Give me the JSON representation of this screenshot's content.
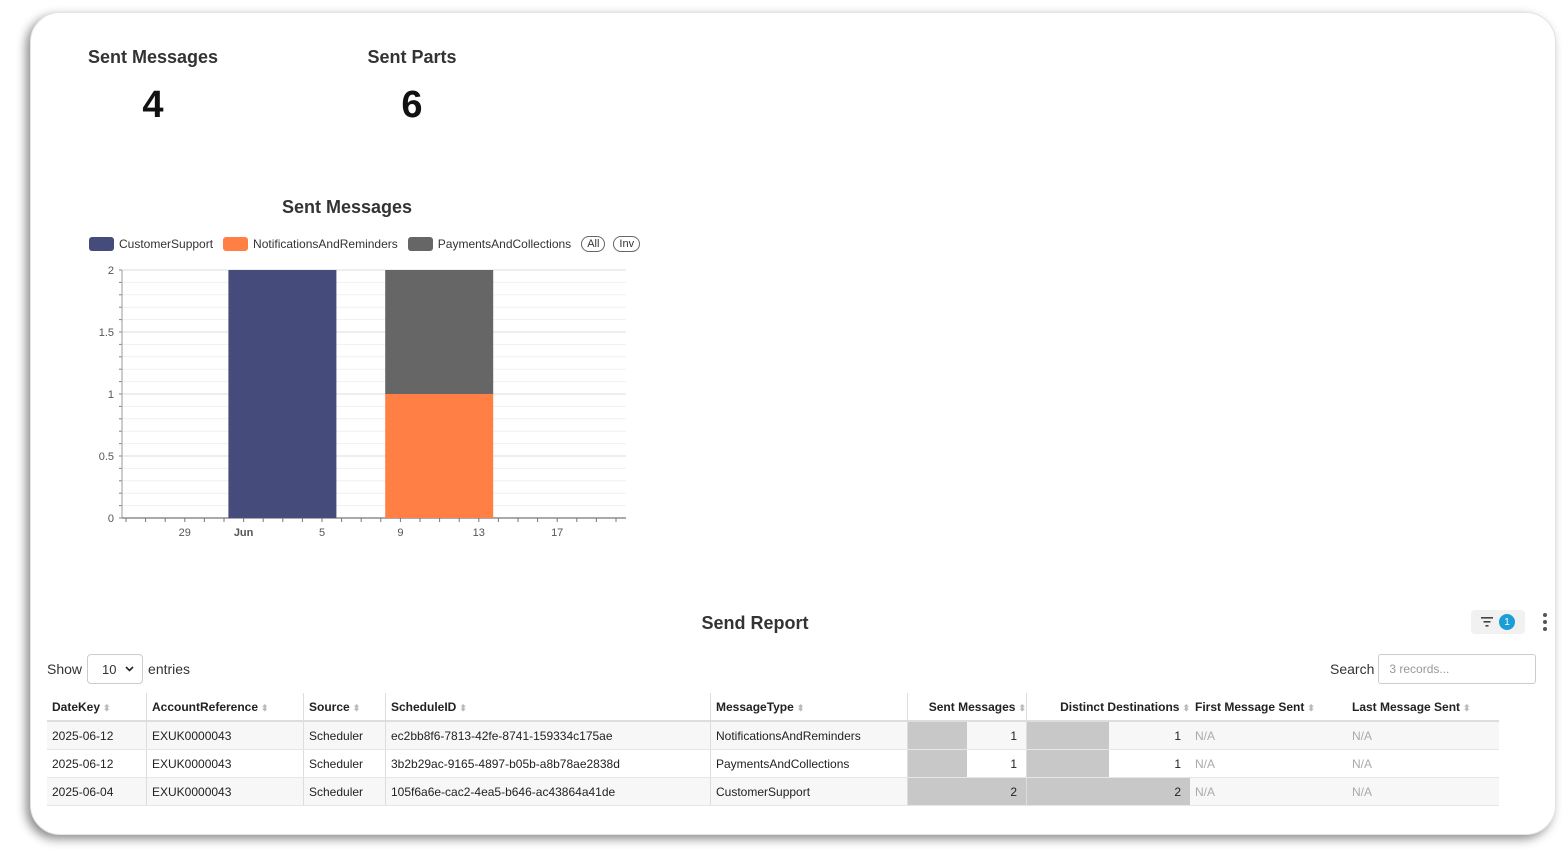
{
  "kpis": [
    {
      "title": "Sent Messages",
      "value": "4"
    },
    {
      "title": "Sent Parts",
      "value": "6"
    }
  ],
  "chart": {
    "title": "Sent Messages",
    "legend": [
      {
        "name": "CustomerSupport",
        "color": "#454c7b"
      },
      {
        "name": "NotificationsAndReminders",
        "color": "#ff7f45"
      },
      {
        "name": "PaymentsAndCollections",
        "color": "#666666"
      }
    ],
    "legend_buttons": [
      "All",
      "Inv"
    ]
  },
  "chart_data": {
    "type": "bar",
    "stacked": true,
    "title": "Sent Messages",
    "x_ticks": [
      "29",
      "Jun",
      "5",
      "9",
      "13",
      "17"
    ],
    "y_ticks": [
      "0",
      "0.5",
      "1",
      "1.5",
      "2"
    ],
    "ylim": [
      0,
      2
    ],
    "categories": [
      "2025-06-04",
      "2025-06-12"
    ],
    "series": [
      {
        "name": "CustomerSupport",
        "values": [
          2,
          0
        ]
      },
      {
        "name": "NotificationsAndReminders",
        "values": [
          0,
          1
        ]
      },
      {
        "name": "PaymentsAndCollections",
        "values": [
          0,
          1
        ]
      }
    ]
  },
  "report": {
    "title": "Send Report",
    "filter_count": "1",
    "show_label": "Show",
    "entries_value": "10",
    "entries_label": "entries",
    "search_label": "Search",
    "search_placeholder": "3 records...",
    "columns": [
      "DateKey",
      "AccountReference",
      "Source",
      "ScheduleID",
      "MessageType",
      "Sent Messages",
      "Distinct Destinations",
      "First Message Sent",
      "Last Message Sent"
    ],
    "rows": [
      {
        "date": "2025-06-12",
        "account": "EXUK0000043",
        "source": "Scheduler",
        "schedule": "ec2bb8f6-7813-42fe-8741-159334c175ae",
        "type": "NotificationsAndReminders",
        "sent": "1",
        "sent_frac": 0.5,
        "dest": "1",
        "dest_frac": 0.5,
        "first": "N/A",
        "last": "N/A"
      },
      {
        "date": "2025-06-12",
        "account": "EXUK0000043",
        "source": "Scheduler",
        "schedule": "3b2b29ac-9165-4897-b05b-a8b78ae2838d",
        "type": "PaymentsAndCollections",
        "sent": "1",
        "sent_frac": 0.5,
        "dest": "1",
        "dest_frac": 0.5,
        "first": "N/A",
        "last": "N/A"
      },
      {
        "date": "2025-06-04",
        "account": "EXUK0000043",
        "source": "Scheduler",
        "schedule": "105f6a6e-cac2-4ea5-b646-ac43864a41de",
        "type": "CustomerSupport",
        "sent": "2",
        "sent_frac": 1.0,
        "dest": "2",
        "dest_frac": 1.0,
        "first": "N/A",
        "last": "N/A"
      }
    ]
  }
}
